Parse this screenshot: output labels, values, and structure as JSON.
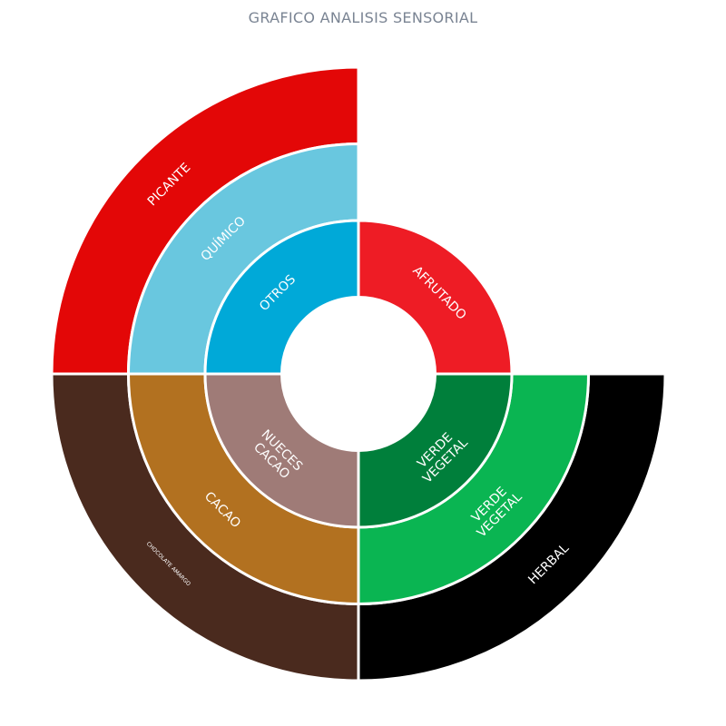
{
  "chart_data": {
    "type": "polar-bar",
    "title": "GRAFICO ANALISIS SENSORIAL",
    "rings": [
      {
        "level": "inner",
        "radius_value": 2,
        "segments": [
          {
            "label": "AFRUTADO",
            "start_deg": 0,
            "end_deg": 90,
            "radius_value": 2,
            "color": "#ee1c25"
          },
          {
            "label": "VERDE\nVEGETAL",
            "start_deg": 90,
            "end_deg": 180,
            "radius_value": 2,
            "color": "#007f3b"
          },
          {
            "label": "NUECES\nCACAO",
            "start_deg": 180,
            "end_deg": 270,
            "radius_value": 2,
            "color": "#9f7b77"
          },
          {
            "label": "OTROS",
            "start_deg": 270,
            "end_deg": 360,
            "radius_value": 2,
            "color": "#00a9d8"
          }
        ]
      },
      {
        "level": "middle",
        "radius_value": 3,
        "segments": [
          {
            "label": "VERDE\nVEGETAL",
            "start_deg": 90,
            "end_deg": 180,
            "radius_value": 3,
            "color": "#0ab552"
          },
          {
            "label": "CACAO",
            "start_deg": 180,
            "end_deg": 270,
            "radius_value": 3,
            "color": "#b27120"
          },
          {
            "label": "QUÍMICO",
            "start_deg": 270,
            "end_deg": 360,
            "radius_value": 3,
            "color": "#69c7df"
          }
        ]
      },
      {
        "level": "outer",
        "radius_value": 4,
        "segments": [
          {
            "label": "HERBAL",
            "start_deg": 90,
            "end_deg": 180,
            "radius_value": 4,
            "color": "#000000"
          },
          {
            "label": "CHOCOLATE AMARGO",
            "start_deg": 180,
            "end_deg": 270,
            "radius_value": 4,
            "color": "#4a2a1e",
            "small_label": true
          },
          {
            "label": "PICANTE",
            "start_deg": 270,
            "end_deg": 360,
            "radius_value": 4,
            "color": "#e30707"
          }
        ]
      }
    ],
    "hole_radius_value": 1,
    "angle_direction": "clockwise",
    "angle_zero": "top",
    "legend": "none",
    "grid": false
  }
}
